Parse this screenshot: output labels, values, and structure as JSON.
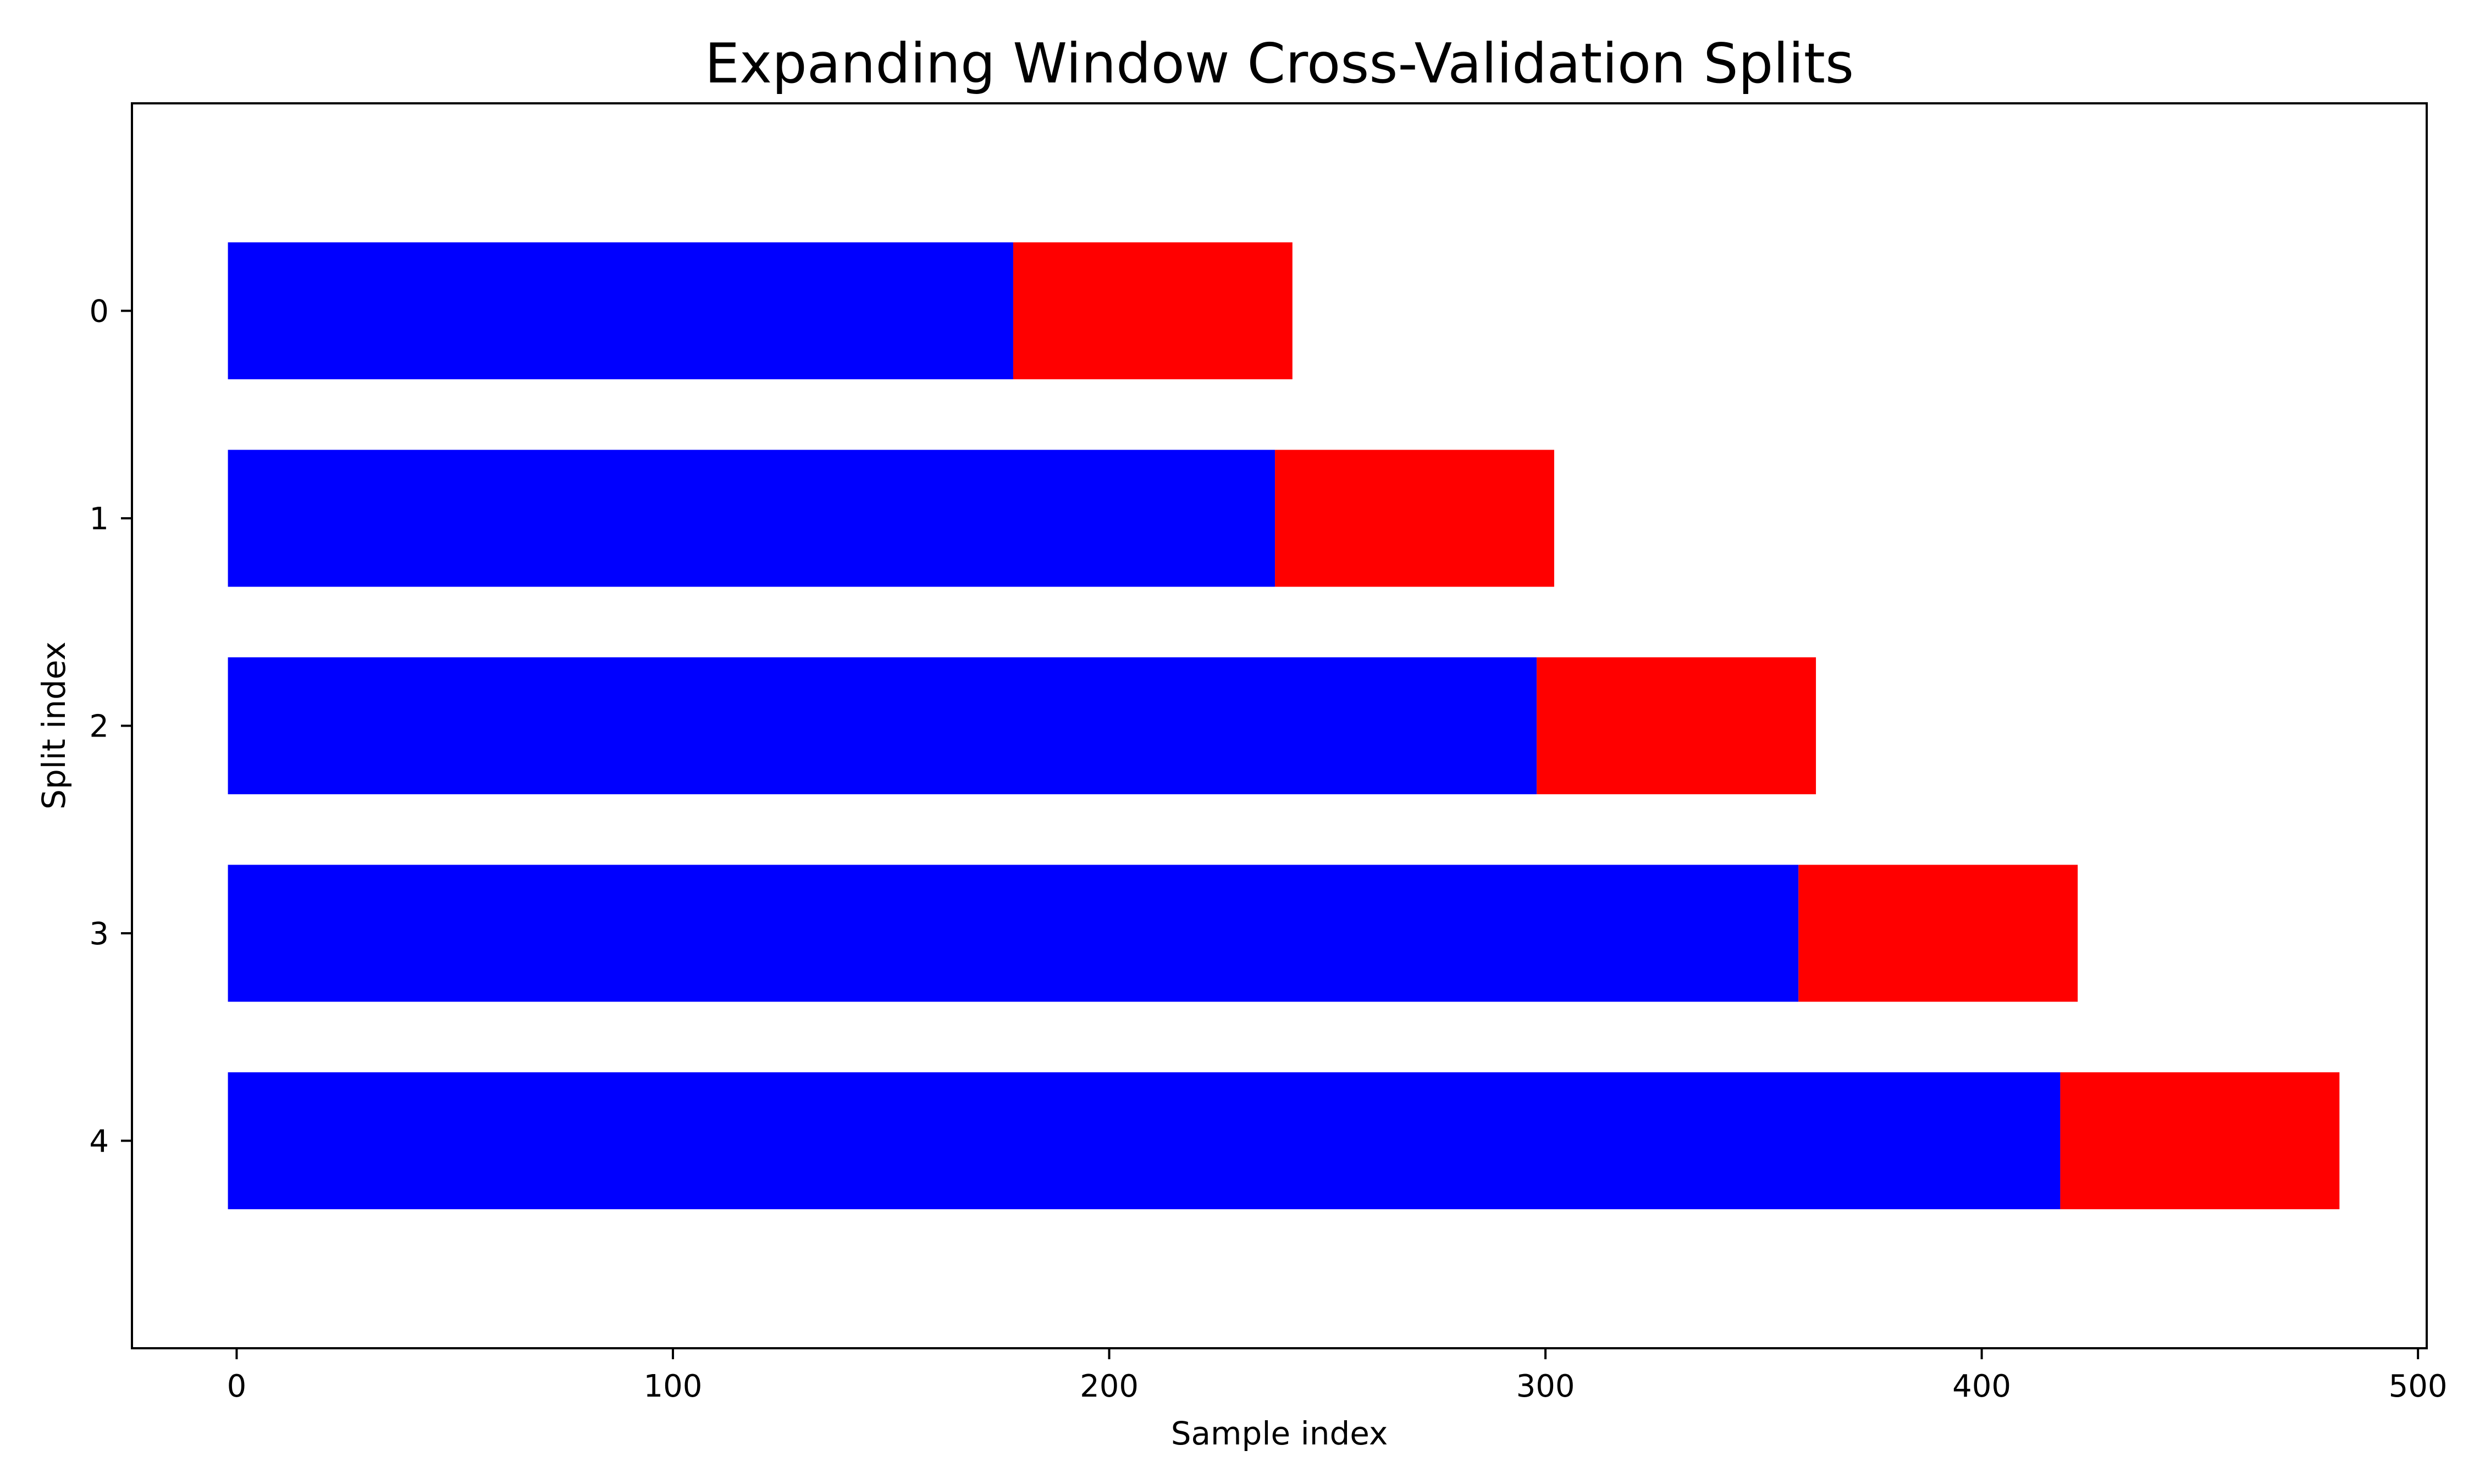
{
  "chart_data": {
    "type": "bar",
    "orientation": "horizontal",
    "stacked": true,
    "title": "Expanding Window Cross-Validation Splits",
    "xlabel": "Sample index",
    "ylabel": "Split index",
    "xlim": [
      -24,
      502
    ],
    "ylim": [
      -1,
      5
    ],
    "xticks": [
      0,
      100,
      200,
      300,
      400,
      500
    ],
    "categories": [
      "0",
      "1",
      "2",
      "3",
      "4"
    ],
    "bar_start": -2,
    "series": [
      {
        "role": "train",
        "color": "#0000ff",
        "values": [
          180,
          240,
          300,
          360,
          420
        ]
      },
      {
        "role": "test",
        "color": "#ff0000",
        "values": [
          64,
          64,
          64,
          64,
          64
        ]
      }
    ],
    "grid": false,
    "legend": false
  }
}
